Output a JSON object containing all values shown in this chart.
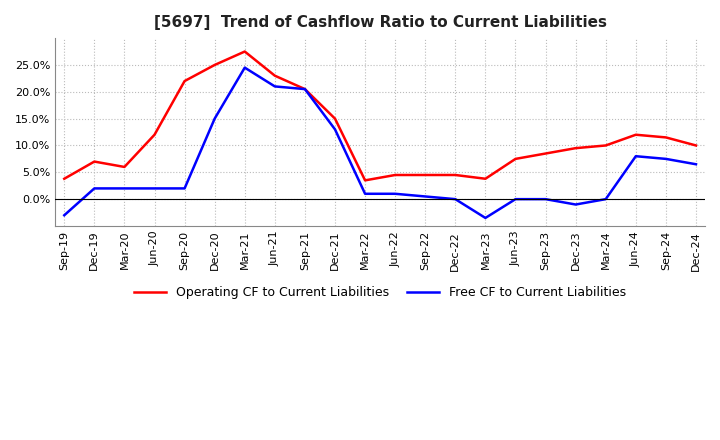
{
  "title": "[5697]  Trend of Cashflow Ratio to Current Liabilities",
  "x_labels": [
    "Sep-19",
    "Dec-19",
    "Mar-20",
    "Jun-20",
    "Sep-20",
    "Dec-20",
    "Mar-21",
    "Jun-21",
    "Sep-21",
    "Dec-21",
    "Mar-22",
    "Jun-22",
    "Sep-22",
    "Dec-22",
    "Mar-23",
    "Jun-23",
    "Sep-23",
    "Dec-23",
    "Mar-24",
    "Jun-24",
    "Sep-24",
    "Dec-24"
  ],
  "operating_cf": [
    3.8,
    7.0,
    6.0,
    12.0,
    22.0,
    25.0,
    27.5,
    23.0,
    20.5,
    15.0,
    3.5,
    4.5,
    4.5,
    4.5,
    3.8,
    7.5,
    8.5,
    9.5,
    10.0,
    12.0,
    11.5,
    10.0
  ],
  "free_cf": [
    -3.0,
    2.0,
    2.0,
    2.0,
    2.0,
    15.0,
    24.5,
    21.0,
    20.5,
    13.0,
    1.0,
    1.0,
    0.5,
    0.0,
    -3.5,
    0.0,
    0.0,
    -1.0,
    0.0,
    8.0,
    7.5,
    6.5
  ],
  "operating_color": "#FF0000",
  "free_color": "#0000FF",
  "ylim": [
    -5.0,
    30.0
  ],
  "yticks": [
    0.0,
    5.0,
    10.0,
    15.0,
    20.0,
    25.0
  ],
  "background_color": "#FFFFFF",
  "grid_color": "#BBBBBB",
  "title_fontsize": 11,
  "legend_fontsize": 9,
  "tick_fontsize": 8
}
